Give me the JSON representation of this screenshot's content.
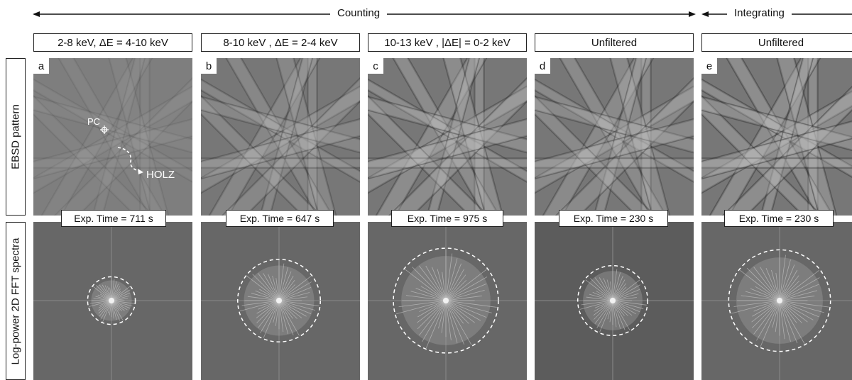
{
  "groups": {
    "counting": "Counting",
    "integrating": "Integrating"
  },
  "columns": [
    {
      "letter": "a",
      "header": "2-8 keV, ΔE = 4-10 keV",
      "exposure": "Exp. Time = 711 s",
      "fft_radius_fraction": 0.15
    },
    {
      "letter": "b",
      "header": "8-10 keV , ΔE = 2-4 keV",
      "exposure": "Exp. Time = 647 s",
      "fft_radius_fraction": 0.26
    },
    {
      "letter": "c",
      "header": "10-13 keV , |ΔE| = 0-2 keV",
      "exposure": "Exp. Time = 975 s",
      "fft_radius_fraction": 0.33
    },
    {
      "letter": "d",
      "header": "Unfiltered",
      "exposure": "Exp. Time = 230 s",
      "fft_radius_fraction": 0.22
    },
    {
      "letter": "e",
      "header": "Unfiltered",
      "exposure": "Exp. Time = 230 s",
      "fft_radius_fraction": 0.32
    }
  ],
  "row_labels": {
    "top": "EBSD pattern",
    "bottom": "Log-power 2D FFT spectra"
  },
  "annotations": {
    "pc": "PC",
    "holz": "HOLZ"
  },
  "colors": {
    "arrow": "#111111",
    "panel_dark": "#5e5e5e",
    "panel_light": "#9a9a9a",
    "circle": "#ffffff"
  }
}
